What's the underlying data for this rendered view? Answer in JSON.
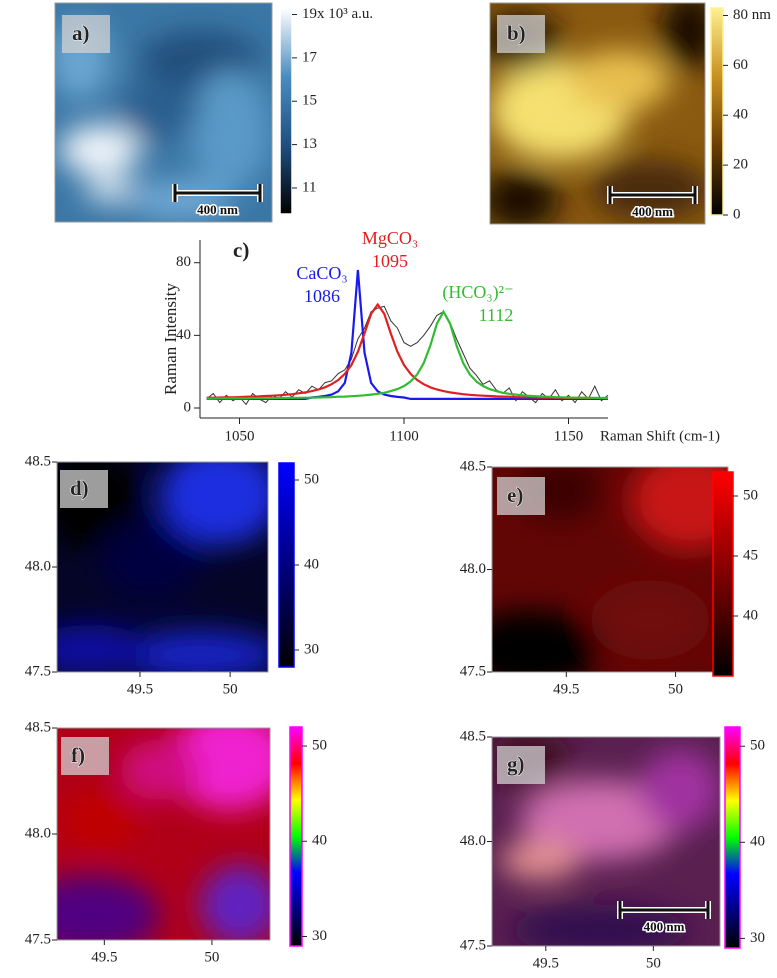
{
  "chart_data": [
    {
      "type": "image",
      "label": "a)",
      "colormap": [
        "#000000",
        "#1f4f80",
        "#4a8cc0",
        "#ffffff"
      ],
      "clim": [
        9.8,
        19.3
      ],
      "ticks": [
        {
          "value": 19,
          "label": "19x 10³ a.u."
        },
        17,
        15,
        13,
        11
      ],
      "scale_bar": "400 nm"
    },
    {
      "type": "image",
      "label": "b)",
      "colormap": [
        "#000000",
        "#6b3d05",
        "#c89020",
        "#fff090"
      ],
      "clim": [
        0,
        83
      ],
      "ticks": [
        {
          "value": 80,
          "label": "80 nm"
        },
        60,
        40,
        20,
        0
      ],
      "scale_bar": "400 nm"
    },
    {
      "type": "line",
      "label": "c)",
      "x_label": "Raman Shift (cm-1)",
      "y_label": "Raman Intensity",
      "xlim": [
        1038,
        1162
      ],
      "xticks": [
        1050,
        1100,
        1150
      ],
      "ylim": [
        -5.5,
        92.5
      ],
      "yticks": [
        0,
        40,
        80
      ],
      "x": [
        1040,
        1042,
        1044,
        1046,
        1048,
        1050,
        1052,
        1054,
        1056,
        1058,
        1060,
        1062,
        1064,
        1066,
        1068,
        1070,
        1072,
        1074,
        1076,
        1078,
        1080,
        1082,
        1084,
        1086,
        1088,
        1090,
        1092,
        1094,
        1096,
        1098,
        1100,
        1102,
        1104,
        1106,
        1108,
        1110,
        1112,
        1114,
        1116,
        1118,
        1120,
        1122,
        1124,
        1126,
        1128,
        1130,
        1132,
        1134,
        1136,
        1138,
        1140,
        1142,
        1144,
        1146,
        1148,
        1150,
        1152,
        1154,
        1156,
        1158,
        1160,
        1162
      ],
      "series": [
        {
          "color": "#333333",
          "values": [
            5,
            8,
            3,
            7,
            4,
            6,
            2,
            8,
            5,
            3,
            7,
            5,
            9,
            6,
            10,
            8,
            12,
            10,
            14,
            15,
            19,
            21,
            27,
            38,
            44,
            53,
            55,
            56,
            48,
            44,
            36,
            34,
            36,
            40,
            45,
            51,
            53,
            47,
            38,
            30,
            22,
            18,
            13,
            15,
            10,
            8,
            11,
            4,
            9,
            6,
            3,
            8,
            5,
            10,
            4,
            7,
            3,
            9,
            5,
            12,
            4,
            7
          ]
        },
        {
          "name": "CaCO₃",
          "peak_label": "1086",
          "color": "#1a1aee",
          "values": [
            5,
            5,
            5,
            5,
            5,
            5,
            5,
            5,
            5,
            5,
            5,
            5,
            5,
            5,
            5,
            5,
            5.8,
            6.1,
            6.6,
            7.4,
            9.2,
            13.8,
            30.5,
            76,
            30.5,
            13.8,
            9.2,
            7.4,
            6.6,
            6.1,
            5.8,
            5,
            5,
            5,
            5,
            5,
            5,
            5,
            5,
            5,
            5,
            5,
            5,
            5,
            5,
            5,
            5,
            5,
            5,
            5,
            5,
            5,
            5,
            5,
            5,
            5,
            5,
            5,
            5,
            5,
            5,
            5
          ]
        },
        {
          "name": "MgCO₃",
          "peak_label": "1095",
          "color": "#e02020",
          "values": [
            5.7,
            5.7,
            5.8,
            5.9,
            5.9,
            6.0,
            6.2,
            6.3,
            6.4,
            6.6,
            6.8,
            7.0,
            7.3,
            7.6,
            8.1,
            8.6,
            9.3,
            10.2,
            11.4,
            13.1,
            15.4,
            18.8,
            23.7,
            31,
            41,
            51.8,
            57,
            51.8,
            41,
            31,
            23.7,
            18.8,
            15.4,
            13.1,
            11.4,
            10.2,
            9.3,
            8.6,
            8.1,
            7.6,
            7.3,
            7.0,
            6.8,
            6.6,
            6.4,
            6.3,
            6.2,
            6.0,
            5.9,
            5.9,
            5.8,
            5.7,
            5.7,
            5.6,
            5.6,
            5.5,
            5.5,
            5.5,
            5.4,
            5.4,
            5.4,
            5.3
          ]
        },
        {
          "name": "(HCO₃)²⁻",
          "peak_label": "1112",
          "color": "#33bb33",
          "values": [
            5.2,
            5.2,
            5.3,
            5.3,
            5.3,
            5.3,
            5.3,
            5.4,
            5.4,
            5.4,
            5.4,
            5.5,
            5.5,
            5.6,
            5.6,
            5.7,
            5.7,
            5.8,
            5.9,
            6.0,
            6.2,
            6.3,
            6.5,
            6.7,
            7.0,
            7.4,
            7.8,
            8.4,
            9.3,
            10.4,
            12.1,
            14.6,
            18.5,
            24.7,
            34.3,
            46.4,
            53,
            46.4,
            34.3,
            24.7,
            18.5,
            14.6,
            12.1,
            10.4,
            9.3,
            8.4,
            7.8,
            7.4,
            7.0,
            6.7,
            6.5,
            6.3,
            6.2,
            6.0,
            5.9,
            5.8,
            5.7,
            5.7,
            5.6,
            5.6,
            5.5,
            5.5
          ]
        }
      ]
    },
    {
      "type": "heatmap",
      "label": "d)",
      "xlim": [
        49.04,
        50.21
      ],
      "ylim": [
        47.5,
        48.5
      ],
      "xticks": [
        49.5,
        50
      ],
      "yticks": [
        47.5,
        {
          "value": 48,
          "label": "48.0"
        },
        48.5
      ],
      "clim": [
        28,
        52
      ],
      "cticks": [
        50,
        40,
        30
      ],
      "colormap": [
        "#000000",
        "#0000ff"
      ]
    },
    {
      "type": "heatmap",
      "label": "e)",
      "xlim": [
        49.16,
        50.24
      ],
      "ylim": [
        47.5,
        48.5
      ],
      "xticks": [
        49.5,
        50
      ],
      "yticks": [
        47.5,
        {
          "value": 48,
          "label": "48.0"
        },
        48.5
      ],
      "clim": [
        35,
        52
      ],
      "cticks": [
        50,
        45,
        40
      ],
      "colormap": [
        "#000000",
        "#ff0000"
      ]
    },
    {
      "type": "heatmap",
      "label": "f)",
      "xlim": [
        49.28,
        50.27
      ],
      "ylim": [
        47.5,
        48.5
      ],
      "xticks": [
        49.5,
        50
      ],
      "yticks": [
        47.5,
        {
          "value": 48,
          "label": "48.0"
        },
        48.5
      ],
      "clim": [
        29,
        52
      ],
      "cticks": [
        50,
        40,
        30
      ],
      "colormap": [
        "#000000",
        "#000080",
        "#0000ff",
        "#00ff00",
        "#ffff00",
        "#ff0000",
        "#ff00ff"
      ]
    },
    {
      "type": "heatmap",
      "label": "g)",
      "xlim": [
        49.25,
        50.31
      ],
      "ylim": [
        47.5,
        48.5
      ],
      "xticks": [
        49.5,
        50
      ],
      "yticks": [
        47.5,
        {
          "value": 48,
          "label": "48.0"
        },
        48.5
      ],
      "clim": [
        29,
        52
      ],
      "cticks": [
        50,
        40,
        30
      ],
      "colormap": [
        "#000000",
        "#000080",
        "#0000ff",
        "#00ff00",
        "#ffff00",
        "#ff0000",
        "#ff00ff"
      ],
      "scale_bar": "400 nm"
    }
  ]
}
